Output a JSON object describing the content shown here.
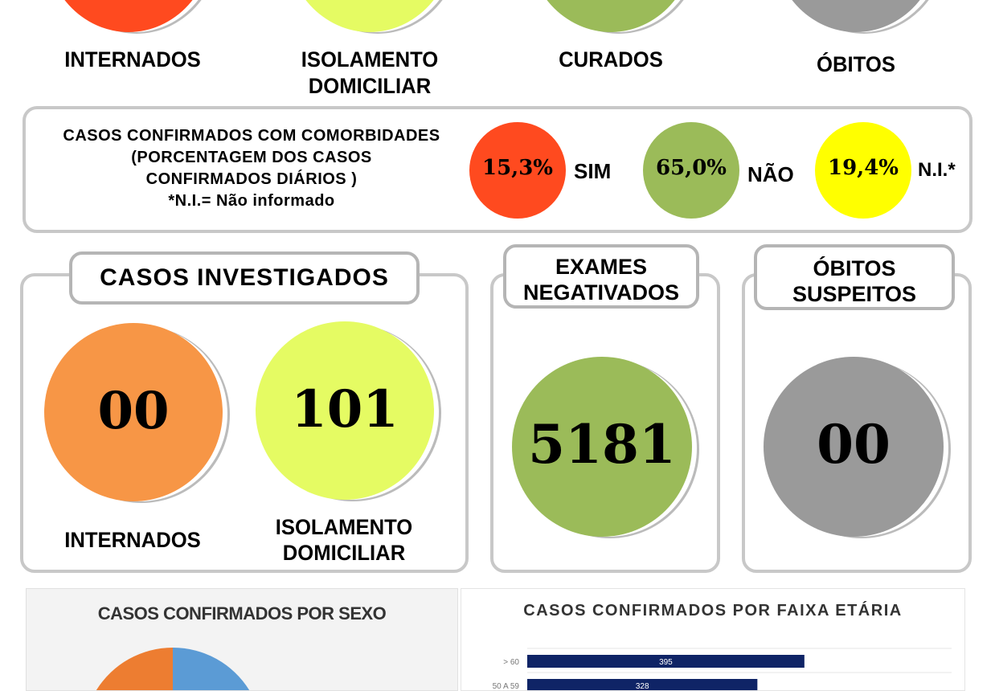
{
  "confirmados": {
    "items": [
      {
        "label": "INTERNADOS",
        "color": "#ff4a1f"
      },
      {
        "label": "ISOLAMENTO DOMICILIAR",
        "color": "#e5fb63"
      },
      {
        "label": "CURADOS",
        "color": "#9bbb59"
      },
      {
        "label": "ÓBITOS",
        "color": "#9a9a9a"
      }
    ]
  },
  "comorbidades": {
    "title_lines": [
      "CASOS CONFIRMADOS COM COMORBIDADES",
      "(PORCENTAGEM DOS CASOS",
      "CONFIRMADOS DIÁRIOS )",
      "*N.I.= Não informado"
    ],
    "items": [
      {
        "value": "15,3%",
        "label": "SIM",
        "color": "#ff4a1f"
      },
      {
        "value": "65,0%",
        "label": "NÃO",
        "color": "#9bbb59"
      },
      {
        "value": "19,4%",
        "label": "N.I.*",
        "color": "#ffff00"
      }
    ]
  },
  "investigados": {
    "title": "CASOS INVESTIGADOS",
    "internados": {
      "value": "00",
      "label": "INTERNADOS",
      "color": "#f79646"
    },
    "isolamento": {
      "value": "101",
      "label_1": "ISOLAMENTO",
      "label_2": "DOMICILIAR",
      "color": "#e5fb63"
    }
  },
  "exames": {
    "title_1": "EXAMES",
    "title_2": "NEGATIVADOS",
    "value": "5181",
    "color": "#9bbb59"
  },
  "obitos_suspeitos": {
    "title_1": "ÓBITOS",
    "title_2": "SUSPEITOS",
    "value": "00",
    "color": "#9a9a9a"
  },
  "chart_data": [
    {
      "type": "pie",
      "title": "CASOS CONFIRMADOS POR SEXO",
      "slice_colors": [
        "#5b9bd5",
        "#ed7d31"
      ]
    },
    {
      "type": "bar",
      "orientation": "horizontal",
      "title": "CASOS CONFIRMADOS POR FAIXA ETÁRIA",
      "categories": [
        "> 60",
        "50 A 59"
      ],
      "values": [
        395,
        328
      ],
      "color": "#0f2466",
      "grid": true
    }
  ]
}
